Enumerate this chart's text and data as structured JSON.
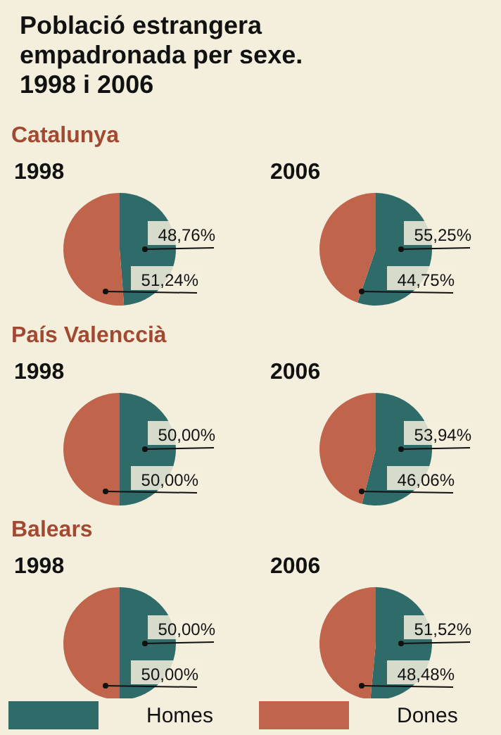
{
  "chart_data": [
    {
      "type": "other",
      "title": "Població estrangera empadronada per sexe. 1998 i 2006"
    },
    {
      "type": "pie",
      "subtitle": "Catalunya",
      "title": "1998",
      "categories": [
        "Homes",
        "Dones"
      ],
      "values": [
        48.76,
        51.24
      ],
      "value_labels": [
        "48,76%",
        "51,24%"
      ],
      "colors": [
        "#2f6b68",
        "#c0644c"
      ],
      "legend": "bottom"
    },
    {
      "type": "pie",
      "title": "2006",
      "categories": [
        null,
        null
      ],
      "values": [
        55.25,
        44.75
      ],
      "value_labels": [
        "55,25%",
        "44,75%"
      ],
      "colors": [
        "#2f6b68",
        "#c0644c"
      ]
    },
    {
      "type": "pie",
      "subtitle": "País Valenccià",
      "title": "1998",
      "categories": [
        null,
        null
      ],
      "values": [
        50,
        50
      ],
      "value_labels": [
        "50,00%",
        "50,00%"
      ],
      "colors": [
        "#2f6b68",
        "#c0644c"
      ]
    },
    {
      "type": "pie",
      "title": "2006",
      "categories": [
        null,
        null
      ],
      "values": [
        53.94,
        46.06
      ],
      "value_labels": [
        "53,94%",
        "46,06%"
      ],
      "colors": [
        "#2f6b68",
        "#c0644c"
      ]
    },
    {
      "type": "pie",
      "subtitle": "Balears",
      "title": "1998",
      "categories": [
        null,
        null
      ],
      "values": [
        50,
        50
      ],
      "value_labels": [
        "50,00%",
        "50,00%"
      ],
      "colors": [
        "#2f6b68",
        "#c0644c"
      ]
    },
    {
      "type": "pie",
      "title": "2006",
      "categories": [
        null,
        null
      ],
      "values": [
        51.52,
        48.48
      ],
      "value_labels": [
        "51,52%",
        "48,48%"
      ],
      "colors": [
        "#2f6b68",
        "#c0644c"
      ]
    }
  ]
}
